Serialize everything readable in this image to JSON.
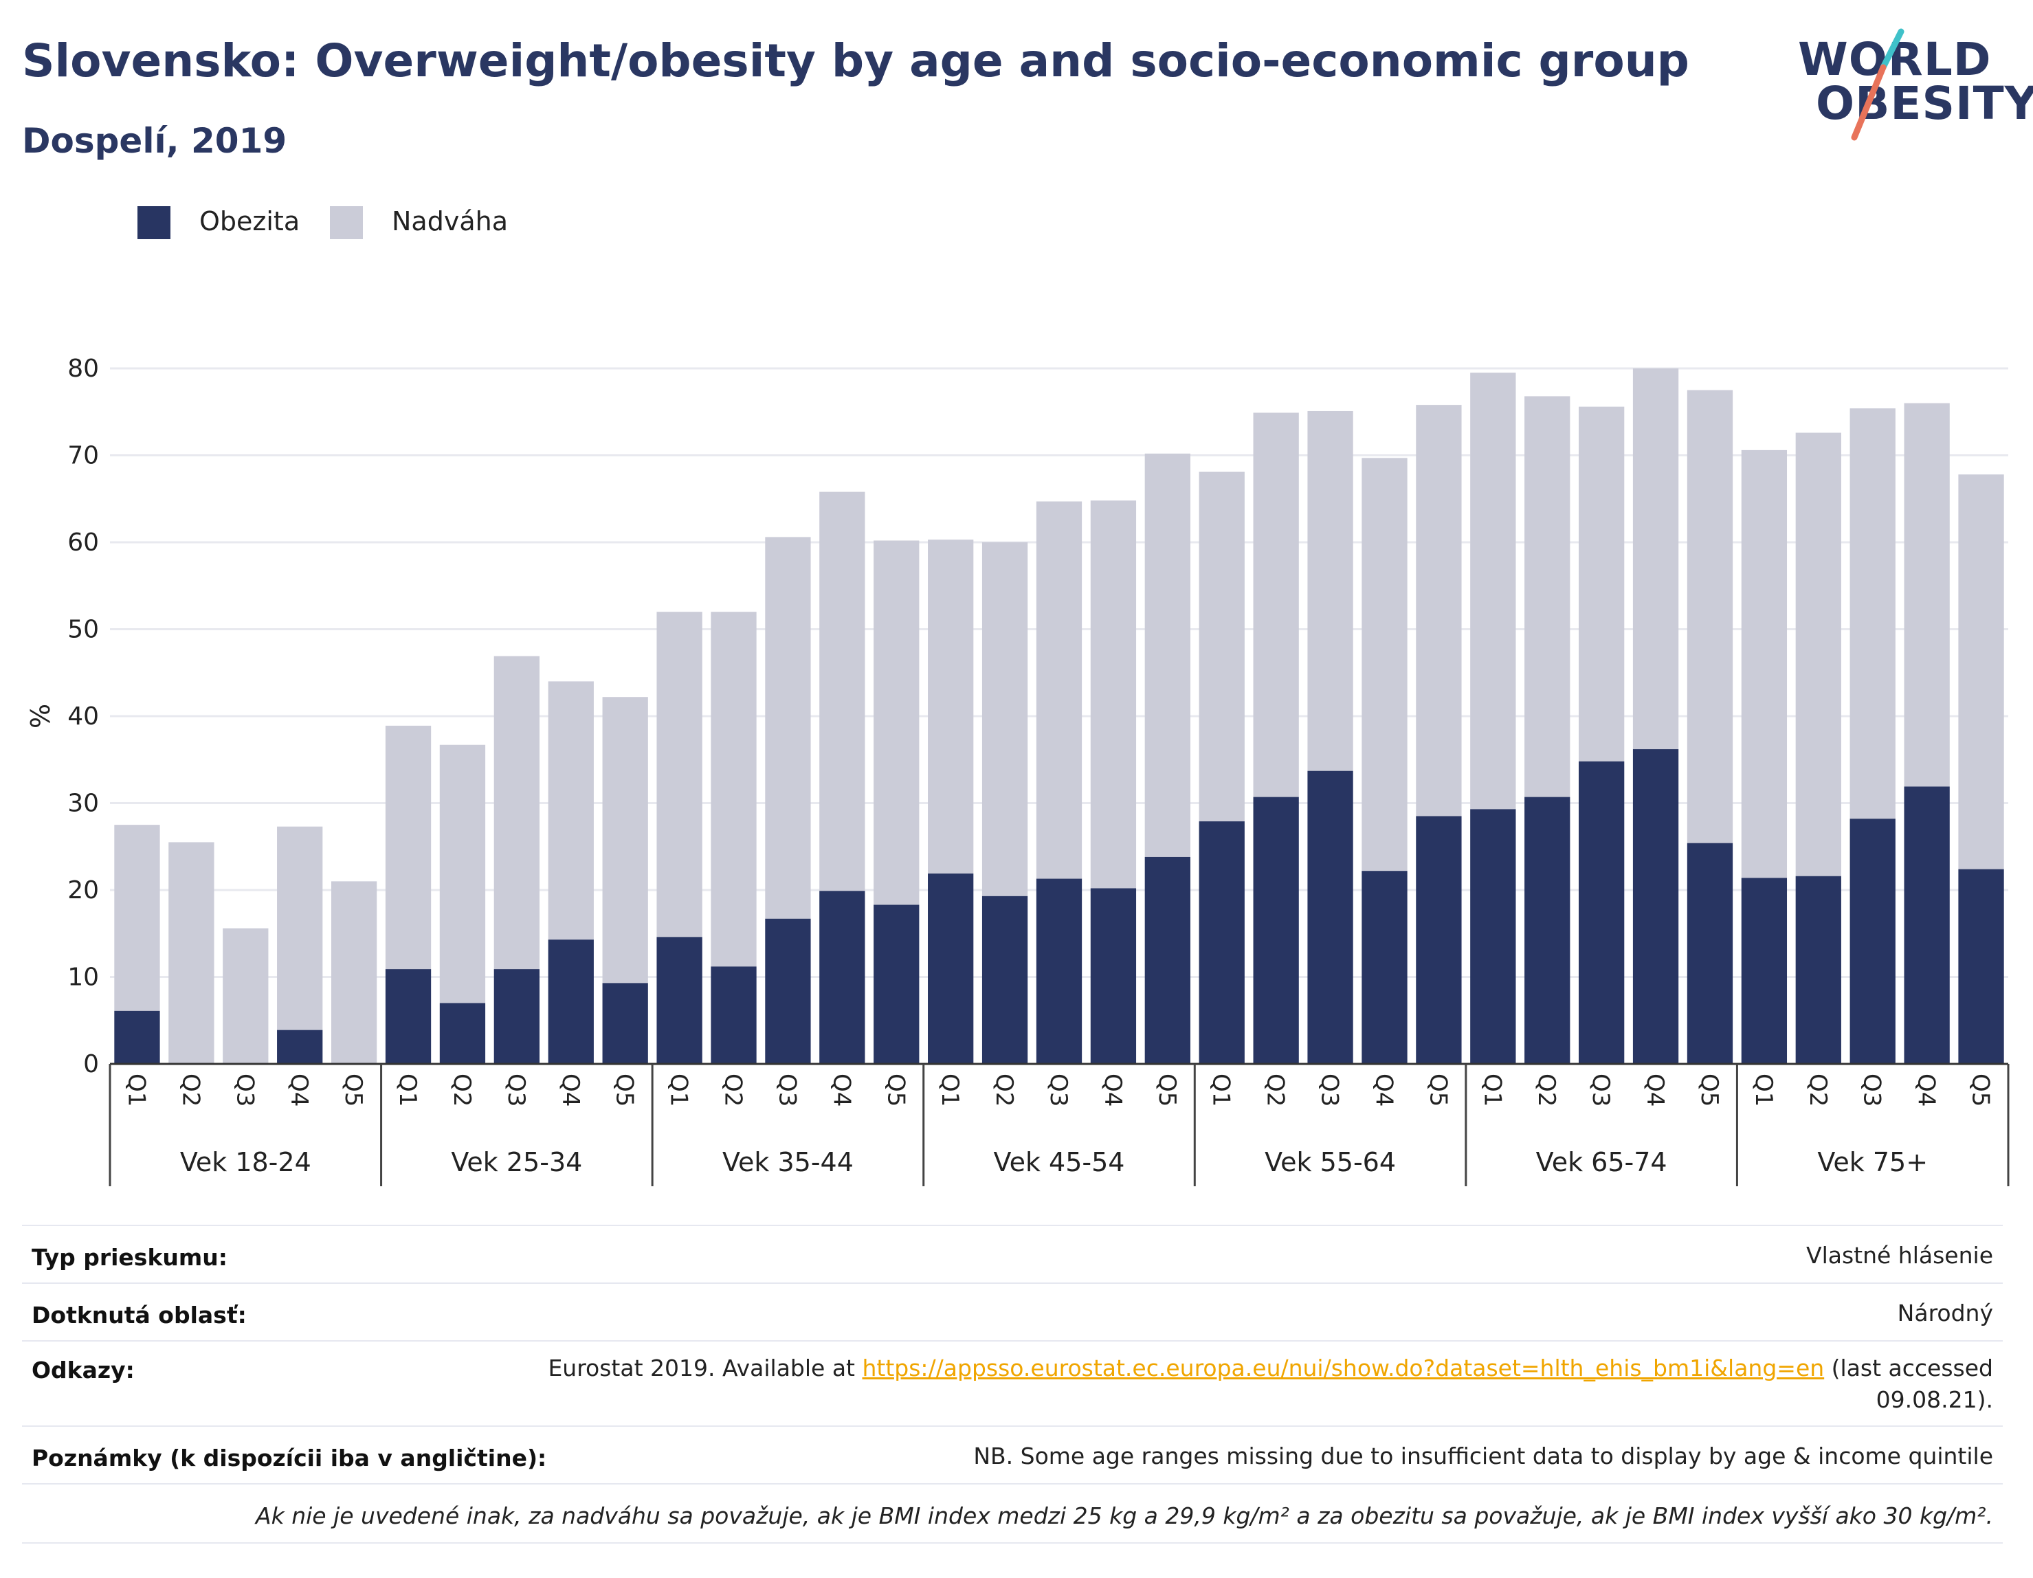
{
  "header": {
    "title": "Slovensko: Overweight/obesity by age and socio-economic group",
    "subtitle": "Dospelí, 2019"
  },
  "logo": {
    "line1": "WORLD",
    "line2": "OBESITY",
    "accent1": "#3fc1c9",
    "accent2": "#e8735a"
  },
  "legend": [
    {
      "label": "Obezita",
      "color": "#283562"
    },
    {
      "label": "Nadváha",
      "color": "#cbccd8"
    }
  ],
  "chart_data": {
    "type": "bar",
    "stacked": true,
    "ylabel": "%",
    "ylim": [
      0,
      80
    ],
    "yticks": [
      0,
      10,
      20,
      30,
      40,
      50,
      60,
      70,
      80
    ],
    "grid": true,
    "legend_position": "top-left",
    "groups": [
      "Vek 18-24",
      "Vek 25-34",
      "Vek 35-44",
      "Vek 45-54",
      "Vek 55-64",
      "Vek 65-74",
      "Vek 75+"
    ],
    "quintiles": [
      "Q1",
      "Q2",
      "Q3",
      "Q4",
      "Q5"
    ],
    "series": [
      {
        "name": "Obezita",
        "color": "#283562",
        "values": [
          [
            6.1,
            0,
            0,
            3.9,
            0
          ],
          [
            10.9,
            7.0,
            10.9,
            14.3,
            9.3
          ],
          [
            14.6,
            11.2,
            16.7,
            19.9,
            18.3
          ],
          [
            21.9,
            19.3,
            21.3,
            20.2,
            23.8
          ],
          [
            27.9,
            30.7,
            33.7,
            22.2,
            28.5
          ],
          [
            29.3,
            30.7,
            34.8,
            36.2,
            25.4
          ],
          [
            21.4,
            21.6,
            28.2,
            31.9,
            22.4
          ]
        ]
      },
      {
        "name": "Nadváha",
        "color": "#cbccd8",
        "values": [
          [
            21.4,
            25.5,
            15.6,
            23.4,
            21.0
          ],
          [
            28.0,
            29.7,
            36.0,
            29.7,
            32.9
          ],
          [
            37.4,
            40.8,
            43.9,
            45.9,
            41.9
          ],
          [
            38.4,
            40.7,
            43.4,
            44.6,
            46.4
          ],
          [
            40.2,
            44.2,
            41.4,
            47.5,
            47.3
          ],
          [
            50.2,
            46.1,
            40.8,
            43.8,
            52.1
          ],
          [
            49.2,
            51.0,
            47.2,
            44.1,
            45.4
          ]
        ]
      }
    ]
  },
  "meta": {
    "survey_type_label": "Typ prieskumu:",
    "survey_type_value": "Vlastné hlásenie",
    "area_label": "Dotknutá oblasť:",
    "area_value": "Národný",
    "refs_label": "Odkazy:",
    "refs_prefix": "Eurostat 2019. Available at ",
    "refs_link": "https://appsso.eurostat.ec.europa.eu/nui/show.do?dataset=hlth_ehis_bm1i&lang=en",
    "refs_suffix": " (last accessed",
    "refs_date": "09.08.21).",
    "notes_label": "Poznámky (k dispozícii iba v angličtine):",
    "notes_value": "NB. Some age ranges missing due to insufficient data to display by age & income quintile",
    "footnote": "Ak nie je uvedené inak, za nadváhu sa považuje, ak je BMI index medzi 25 kg a 29,9 kg/m² a za obezitu sa považuje, ak je BMI index vyšší ako 30 kg/m²."
  }
}
